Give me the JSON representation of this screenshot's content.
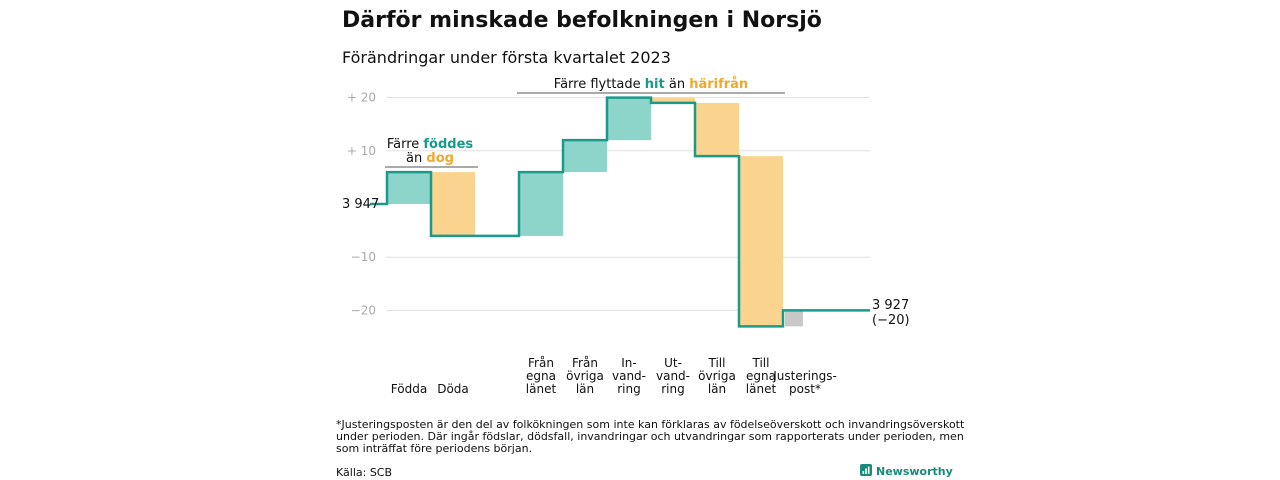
{
  "chart_data": {
    "type": "waterfall",
    "title": "Därför minskade befolkningen i Norsjö",
    "subtitle": "Förändringar under första kvartalet 2023",
    "start_label": "3 947",
    "end_label_line1": "3 927",
    "end_label_line2": "(−20)",
    "yticks": [
      {
        "value": 20,
        "label": "+ 20"
      },
      {
        "value": 10,
        "label": "+ 10"
      },
      {
        "value": -10,
        "label": "−10"
      },
      {
        "value": -20,
        "label": "−20"
      }
    ],
    "ylim": [
      -23,
      22
    ],
    "steps": [
      {
        "id": "fodda",
        "label_lines": [
          "Födda"
        ],
        "from": 0,
        "to": 6,
        "kind": "increase"
      },
      {
        "id": "doda",
        "label_lines": [
          "Döda"
        ],
        "from": 6,
        "to": -6,
        "kind": "decrease"
      },
      {
        "id": "fran-egna-lanet",
        "label_lines": [
          "Från",
          "egna",
          "länet"
        ],
        "from": -6,
        "to": 6,
        "kind": "increase"
      },
      {
        "id": "fran-ovriga-lan",
        "label_lines": [
          "Från",
          "övriga",
          "län"
        ],
        "from": 6,
        "to": 12,
        "kind": "increase"
      },
      {
        "id": "invandring",
        "label_lines": [
          "In-",
          "vand-",
          "ring"
        ],
        "from": 12,
        "to": 20,
        "kind": "increase"
      },
      {
        "id": "utvandring",
        "label_lines": [
          "Ut-",
          "vand-",
          "ring"
        ],
        "from": 20,
        "to": 19,
        "kind": "decrease"
      },
      {
        "id": "till-ovriga-lan",
        "label_lines": [
          "Till",
          "övriga",
          "län"
        ],
        "from": 19,
        "to": 9,
        "kind": "decrease"
      },
      {
        "id": "till-egna-lanet",
        "label_lines": [
          "Till",
          "egna",
          "länet"
        ],
        "from": 9,
        "to": -23,
        "kind": "decrease"
      },
      {
        "id": "justeringspost",
        "label_lines": [
          "Justerings-",
          "post*"
        ],
        "from": -23,
        "to": -20,
        "kind": "adjustment"
      }
    ],
    "annotation_birth": {
      "line1_prefix": "Färre ",
      "line1_highlight": "föddes",
      "line2_prefix": "än ",
      "line2_highlight": "dog"
    },
    "annotation_migration": {
      "prefix": "Färre flyttade ",
      "highlight1": "hit",
      "middle": " än ",
      "highlight2": "härifrån"
    },
    "colors": {
      "increase": "#8dd5cb",
      "decrease": "#fad48f",
      "adjustment": "#c8c8c8",
      "line": "#1a9a8a",
      "grid": "#e0e0e0",
      "teal_text": "#1a9a8a",
      "orange_text": "#f0a82e"
    }
  },
  "footnote": [
    "*Justeringsposten är den del av folkökningen som inte kan förklaras av födelseöverskott och invandringsöverskott",
    "under perioden. Där ingår födslar, dödsfall, invandringar och utvandringar som rapporterats under perioden, men",
    "som inträffat före periodens början."
  ],
  "source": "Källa: SCB",
  "brand": "Newsworthy"
}
